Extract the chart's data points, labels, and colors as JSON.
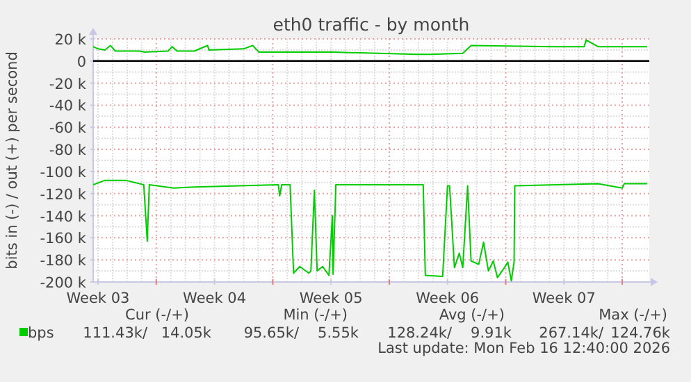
{
  "chart_data": {
    "type": "line",
    "title": "eth0 traffic - by month",
    "ylabel": "bits in (-) / out (+) per second",
    "xlim": [
      "2026-01-14T05:00",
      "2026-02-16T15:00"
    ],
    "xticks": [
      {
        "value": "2026-01-14T12:00",
        "label": "Week 03"
      },
      {
        "value": "2026-01-18T00:00",
        "label": null
      },
      {
        "value": "2026-01-21T12:00",
        "label": "Week 04"
      },
      {
        "value": "2026-01-25T00:00",
        "label": null
      },
      {
        "value": "2026-01-28T12:00",
        "label": "Week 05"
      },
      {
        "value": "2026-02-01T00:00",
        "label": null
      },
      {
        "value": "2026-02-04T12:00",
        "label": "Week 06"
      },
      {
        "value": "2026-02-08T00:00",
        "label": null
      },
      {
        "value": "2026-02-11T12:00",
        "label": "Week 07"
      },
      {
        "value": "2026-02-15T00:00",
        "label": null
      }
    ],
    "ylim": [
      -200000,
      20000
    ],
    "yticks": [
      {
        "value": 20000,
        "label": "20 k"
      },
      0,
      {
        "value": -20000,
        "label": "-20 k"
      },
      {
        "value": -40000,
        "label": "-40 k"
      },
      {
        "value": -60000,
        "label": "-60 k"
      },
      {
        "value": -80000,
        "label": "-80 k"
      },
      {
        "value": -100000,
        "label": "-100 k"
      },
      {
        "value": -120000,
        "label": "-120 k"
      },
      {
        "value": -140000,
        "label": "-140 k"
      },
      {
        "value": -160000,
        "label": "-160 k"
      },
      {
        "value": -180000,
        "label": "-180 k"
      },
      {
        "value": -200000,
        "label": "-200 k"
      }
    ],
    "grid": true,
    "legend": "bottom",
    "line_style": "solid",
    "ref_lines": [
      {
        "axis": "y",
        "value": 0,
        "color": "#000000"
      }
    ],
    "series": [
      {
        "name": "bps",
        "color": "#00cc00",
        "x": [
          "2026-01-14T05:00",
          "2026-01-14T12:00",
          "2026-01-14T22:00",
          "2026-01-15T06:00",
          "2026-01-15T13:00",
          "2026-01-17T00:00",
          "2026-01-17T07:00",
          "2026-01-18T17:00",
          "2026-01-18T23:00",
          "2026-01-19T06:00",
          "2026-01-20T07:00",
          "2026-01-21T02:00",
          "2026-01-21T04:00",
          "2026-01-23T06:00",
          "2026-01-23T19:00",
          "2026-01-24T04:00",
          "2026-01-28T15:00",
          "2026-02-02T16:00",
          "2026-02-03T12:00",
          "2026-02-05T10:00",
          "2026-02-05T22:00",
          "2026-02-11T00:00",
          "2026-02-12T17:00",
          "2026-02-12T20:00",
          "2026-02-13T13:00",
          "2026-02-16T12:00"
        ],
        "values": [
          13000,
          11000,
          10000,
          14000,
          9000,
          9000,
          8000,
          9000,
          13000,
          9000,
          9000,
          14000,
          10000,
          11000,
          14000,
          8000,
          8000,
          6000,
          6000,
          7000,
          14000,
          13000,
          13000,
          19000,
          13000,
          13000
        ]
      },
      {
        "color": "#00cc00",
        "x": [
          "2026-01-14T05:00",
          "2026-01-14T22:00",
          "2026-01-16T04:00",
          "2026-01-17T06:00",
          "2026-01-17T11:00",
          "2026-01-17T14:00",
          "2026-01-19T01:00",
          "2026-01-20T07:00",
          "2026-01-25T08:00",
          "2026-01-25T10:00",
          "2026-01-25T13:00",
          "2026-01-26T01:00",
          "2026-01-26T06:00",
          "2026-01-26T15:00",
          "2026-01-27T04:00",
          "2026-01-27T07:00",
          "2026-01-27T12:00",
          "2026-01-27T16:00",
          "2026-01-28T00:00",
          "2026-01-28T09:00",
          "2026-01-28T14:00",
          "2026-01-28T15:00",
          "2026-01-28T19:00",
          "2026-02-03T01:00",
          "2026-02-03T04:00",
          "2026-02-04T05:00",
          "2026-02-04T12:00",
          "2026-02-04T15:00",
          "2026-02-04T22:00",
          "2026-02-05T05:00",
          "2026-02-05T10:00",
          "2026-02-05T17:00",
          "2026-02-05T22:00",
          "2026-02-06T09:00",
          "2026-02-06T16:00",
          "2026-02-06T23:00",
          "2026-02-07T06:00",
          "2026-02-07T12:00",
          "2026-02-07T21:00",
          "2026-02-08T03:00",
          "2026-02-08T08:00",
          "2026-02-08T12:00",
          "2026-02-08T13:00",
          "2026-02-13T13:00",
          "2026-02-15T00:00",
          "2026-02-15T03:00",
          "2026-02-16T12:00"
        ],
        "values": [
          -112000,
          -108000,
          -108000,
          -112000,
          -163000,
          -112000,
          -115000,
          -114000,
          -112000,
          -122000,
          -112000,
          -112000,
          -192000,
          -186000,
          -192000,
          -190000,
          -117000,
          -190000,
          -186000,
          -194000,
          -140000,
          -193000,
          -112000,
          -112000,
          -194000,
          -195000,
          -113000,
          -113000,
          -187000,
          -174000,
          -187000,
          -113000,
          -181000,
          -184000,
          -164000,
          -190000,
          -181000,
          -196000,
          -188000,
          -182000,
          -199000,
          -182000,
          -113000,
          -111000,
          -115000,
          -111000,
          -111000
        ]
      }
    ],
    "annotations": [
      "Cur (-/+)",
      "Min (-/+)",
      "Avg (-/+)",
      "Max (-/+)",
      "111.43k/",
      "14.05k",
      "95.65k/",
      "5.55k",
      "128.24k/",
      "9.91k",
      "267.14k/",
      "124.76k",
      "Last update: Mon Feb 16 12:40:00 2026"
    ]
  }
}
